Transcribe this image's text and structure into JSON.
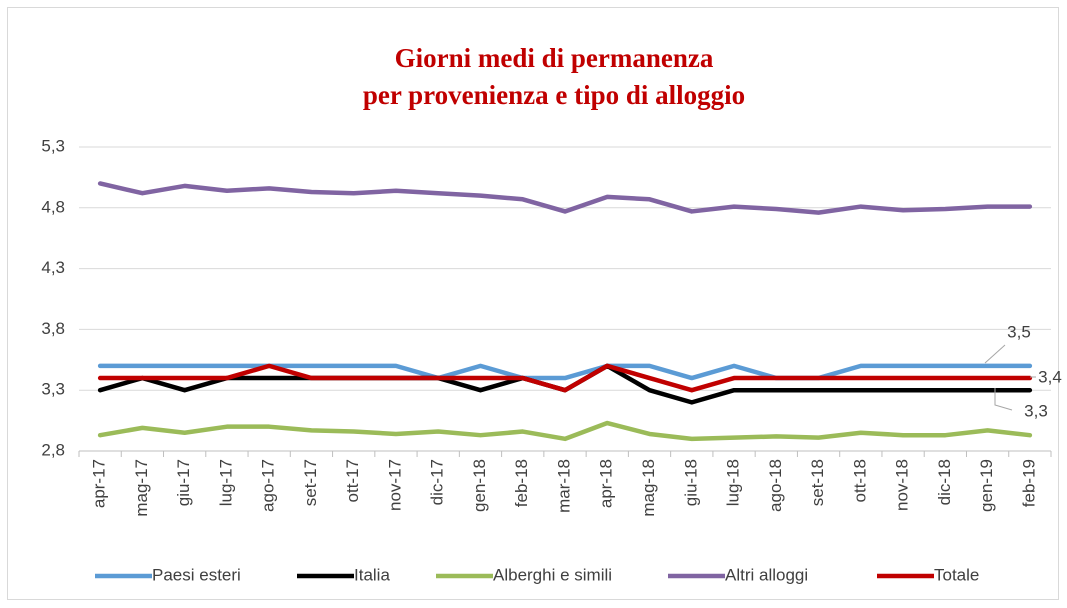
{
  "chart_data": {
    "type": "line",
    "title": [
      "Giorni medi di permanenza",
      "per provenienza e tipo di alloggio"
    ],
    "categories": [
      "apr-17",
      "mag-17",
      "giu-17",
      "lug-17",
      "ago-17",
      "set-17",
      "ott-17",
      "nov-17",
      "dic-17",
      "gen-18",
      "feb-18",
      "mar-18",
      "apr-18",
      "mag-18",
      "giu-18",
      "lug-18",
      "ago-18",
      "set-18",
      "ott-18",
      "nov-18",
      "dic-18",
      "gen-19",
      "feb-19"
    ],
    "ylim": [
      2.8,
      5.3
    ],
    "yticks": [
      {
        "value": 2.8,
        "label": "2,8"
      },
      {
        "value": 3.3,
        "label": "3,3"
      },
      {
        "value": 3.8,
        "label": "3,8"
      },
      {
        "value": 4.3,
        "label": "4,3"
      },
      {
        "value": 4.8,
        "label": "4,8"
      },
      {
        "value": 5.3,
        "label": "5,3"
      }
    ],
    "grid": true,
    "legend": "bottom",
    "series": [
      {
        "name": "Paesi esteri",
        "color": "#5b9bd5",
        "values": [
          3.5,
          3.5,
          3.5,
          3.5,
          3.5,
          3.5,
          3.5,
          3.5,
          3.4,
          3.5,
          3.4,
          3.4,
          3.5,
          3.5,
          3.4,
          3.5,
          3.4,
          3.4,
          3.5,
          3.5,
          3.5,
          3.5,
          3.5
        ],
        "value_labels": [
          null,
          null,
          null,
          null,
          null,
          null,
          null,
          null,
          null,
          null,
          null,
          null,
          null,
          null,
          null,
          null,
          null,
          null,
          null,
          null,
          null,
          null,
          "3,5"
        ]
      },
      {
        "name": "Italia",
        "color": "#000000",
        "values": [
          3.3,
          3.4,
          3.3,
          3.4,
          3.4,
          3.4,
          3.4,
          3.4,
          3.4,
          3.3,
          3.4,
          3.3,
          3.5,
          3.3,
          3.2,
          3.3,
          3.3,
          3.3,
          3.3,
          3.3,
          3.3,
          3.3,
          3.3
        ],
        "value_labels": [
          null,
          null,
          null,
          null,
          null,
          null,
          null,
          null,
          null,
          null,
          null,
          null,
          null,
          null,
          null,
          null,
          null,
          null,
          null,
          null,
          null,
          null,
          "3,3"
        ]
      },
      {
        "name": "Alberghi e simili",
        "color": "#9bbb59",
        "values": [
          2.93,
          2.99,
          2.95,
          3.0,
          3.0,
          2.97,
          2.96,
          2.94,
          2.96,
          2.93,
          2.96,
          2.9,
          3.03,
          2.94,
          2.9,
          2.91,
          2.92,
          2.91,
          2.95,
          2.93,
          2.93,
          2.97,
          2.93
        ]
      },
      {
        "name": "Altri alloggi",
        "color": "#8064a2",
        "values": [
          5.0,
          4.92,
          4.98,
          4.94,
          4.96,
          4.93,
          4.92,
          4.94,
          4.92,
          4.9,
          4.87,
          4.77,
          4.89,
          4.87,
          4.77,
          4.81,
          4.79,
          4.76,
          4.81,
          4.78,
          4.79,
          4.81,
          4.81
        ]
      },
      {
        "name": "Totale",
        "color": "#c00000",
        "values": [
          3.4,
          3.4,
          3.4,
          3.4,
          3.5,
          3.4,
          3.4,
          3.4,
          3.4,
          3.4,
          3.4,
          3.3,
          3.5,
          3.4,
          3.3,
          3.4,
          3.4,
          3.4,
          3.4,
          3.4,
          3.4,
          3.4,
          3.4
        ],
        "value_labels": [
          null,
          null,
          null,
          null,
          null,
          null,
          null,
          null,
          null,
          null,
          null,
          null,
          null,
          null,
          null,
          null,
          null,
          null,
          null,
          null,
          null,
          null,
          "3,4"
        ]
      }
    ]
  }
}
